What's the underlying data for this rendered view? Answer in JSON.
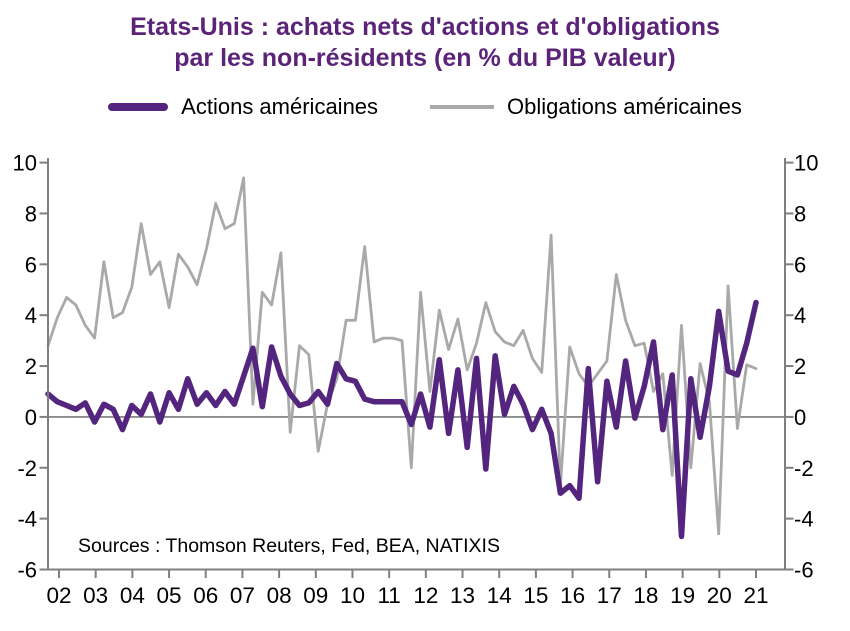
{
  "title": {
    "line1": "Etats-Unis : achats nets d'actions et d'obligations",
    "line2": "par les non-résidents (en % du PIB valeur)"
  },
  "legend": {
    "items": [
      {
        "label": "Actions américaines",
        "color": "#53257e"
      },
      {
        "label": "Obligations américaines",
        "color": "#a9a9a9"
      }
    ]
  },
  "source_note": "Sources : Thomson Reuters, Fed, BEA, NATIXIS",
  "colors": {
    "title": "#5b2478",
    "actions_line": "#53257e",
    "obligations_line": "#a9a9a9",
    "axis": "#7f7f7f",
    "zero_line": "#8c8c8c",
    "text": "#000000"
  },
  "chart_data": {
    "type": "line",
    "frequency": "quarterly",
    "x_start": "2002Q1",
    "x_end": "2021Q1",
    "x_tick_labels": [
      "02",
      "03",
      "04",
      "05",
      "06",
      "07",
      "08",
      "09",
      "10",
      "11",
      "12",
      "13",
      "14",
      "15",
      "16",
      "17",
      "18",
      "19",
      "20",
      "21"
    ],
    "y_ticks": [
      10,
      8,
      6,
      4,
      2,
      0,
      -2,
      -4,
      -6
    ],
    "ylim": [
      -6,
      10
    ],
    "grid": "zero-line-only",
    "legend_position": "top",
    "y_axis_sides": "both",
    "series": [
      {
        "name": "Actions américaines",
        "color": "#53257e",
        "width": 5.5,
        "values": [
          0.9,
          0.6,
          0.45,
          0.3,
          0.55,
          -0.2,
          0.5,
          0.3,
          -0.5,
          0.45,
          0.1,
          0.9,
          -0.2,
          0.95,
          0.3,
          1.5,
          0.5,
          0.95,
          0.45,
          1.0,
          0.5,
          1.6,
          2.7,
          0.4,
          2.75,
          1.6,
          0.9,
          0.45,
          0.55,
          1.0,
          0.5,
          2.1,
          1.5,
          1.4,
          0.7,
          0.6,
          0.6,
          0.6,
          0.6,
          -0.3,
          0.9,
          -0.4,
          2.25,
          -0.65,
          1.85,
          -1.2,
          2.3,
          -2.05,
          2.4,
          0.1,
          1.2,
          0.5,
          -0.5,
          0.3,
          -0.65,
          -3.0,
          -2.7,
          -3.2,
          1.9,
          -2.55,
          1.4,
          -0.4,
          2.2,
          -0.05,
          1.2,
          2.95,
          -0.5,
          1.65,
          -4.7,
          1.5,
          -0.8,
          1.2,
          4.15,
          1.8,
          1.65,
          2.9,
          4.5
        ]
      },
      {
        "name": "Obligations américaines",
        "color": "#a9a9a9",
        "width": 2.8,
        "values": [
          2.8,
          3.9,
          4.7,
          4.4,
          3.6,
          3.1,
          6.1,
          3.9,
          4.1,
          5.1,
          7.6,
          5.6,
          6.1,
          4.3,
          6.4,
          5.9,
          5.2,
          6.6,
          8.4,
          7.4,
          7.6,
          9.4,
          0.5,
          4.9,
          4.4,
          6.45,
          -0.6,
          2.8,
          2.45,
          -1.35,
          0.5,
          1.5,
          3.8,
          3.8,
          6.7,
          2.95,
          3.1,
          3.1,
          3.0,
          -2.0,
          4.9,
          1.0,
          4.2,
          2.65,
          3.85,
          1.85,
          2.9,
          4.5,
          3.35,
          2.95,
          2.8,
          3.4,
          2.3,
          1.75,
          7.15,
          -2.7,
          2.75,
          1.7,
          1.2,
          1.7,
          2.2,
          5.6,
          3.8,
          2.8,
          2.9,
          1.0,
          1.7,
          -2.3,
          3.6,
          -2.0,
          2.1,
          0.6,
          -4.6,
          5.15,
          -0.45,
          2.05,
          1.9
        ]
      }
    ]
  }
}
